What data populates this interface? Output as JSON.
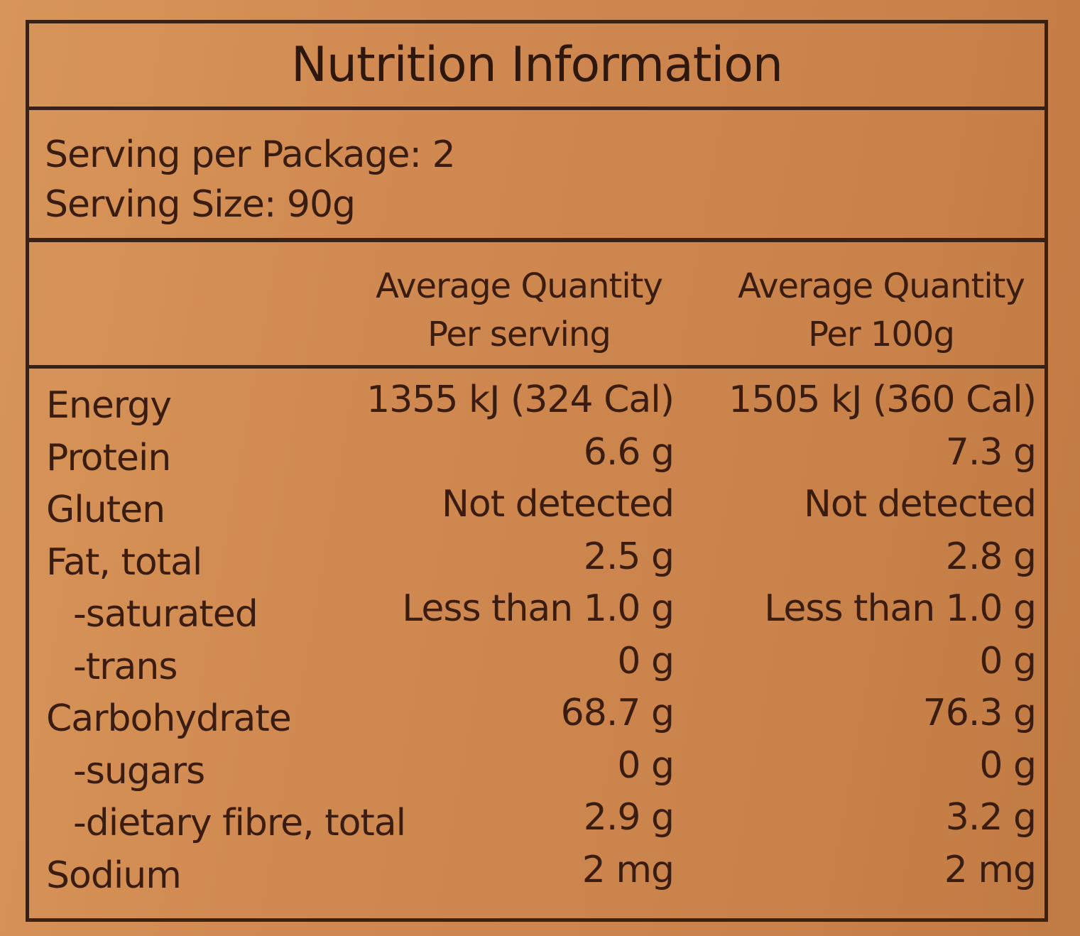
{
  "label": {
    "title": "Nutrition Information",
    "serving_per_package": "Serving per Package: 2",
    "serving_size": "Serving Size: 90g",
    "columns": [
      {
        "line1": "Average  Quantity",
        "line2": "Per serving"
      },
      {
        "line1": "Average  Quantity",
        "line2": "Per 100g"
      }
    ],
    "rows": [
      {
        "name": "Energy",
        "per_serving": "1355 kJ (324 Cal)",
        "per_100g": "1505 kJ (360 Cal)"
      },
      {
        "name": "Protein",
        "per_serving": "6.6 g",
        "per_100g": "7.3 g"
      },
      {
        "name": "Gluten",
        "per_serving": "Not detected",
        "per_100g": "Not detected"
      },
      {
        "name": "Fat, total",
        "per_serving": "2.5 g",
        "per_100g": "2.8 g"
      },
      {
        "name": "-saturated",
        "per_serving": "Less than 1.0 g",
        "per_100g": "Less than 1.0 g"
      },
      {
        "name": "-trans",
        "per_serving": "0 g",
        "per_100g": "0 g"
      },
      {
        "name": "Carbohydrate",
        "per_serving": "68.7 g",
        "per_100g": "76.3 g"
      },
      {
        "name": "-sugars",
        "per_serving": "0 g",
        "per_100g": "0 g"
      },
      {
        "name": "-dietary fibre, total",
        "per_serving": "2.9 g",
        "per_100g": "3.2 g"
      },
      {
        "name": "Sodium",
        "per_serving": "2 mg",
        "per_100g": "2 mg"
      }
    ]
  },
  "colors": {
    "background": "#d08a4e",
    "ink": "#3a1d10",
    "border": "#3b2014"
  }
}
